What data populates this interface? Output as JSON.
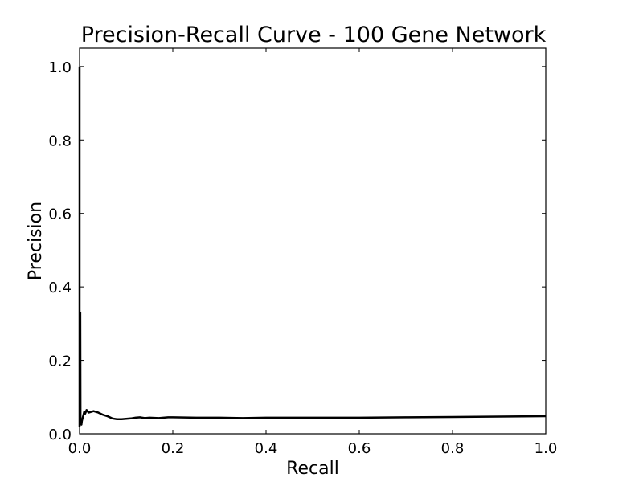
{
  "chart_data": {
    "type": "line",
    "title": "Precision-Recall Curve - 100 Gene Network",
    "xlabel": "Recall",
    "ylabel": "Precision",
    "xlim": [
      0.0,
      1.0
    ],
    "ylim": [
      0.0,
      1.05
    ],
    "grid": false,
    "line_color": "#000000",
    "x_ticks": [
      0.0,
      0.2,
      0.4,
      0.6,
      0.8,
      1.0
    ],
    "x_tick_labels": [
      "0.0",
      "0.2",
      "0.4",
      "0.6",
      "0.8",
      "1.0"
    ],
    "y_ticks": [
      0.0,
      0.2,
      0.4,
      0.6,
      0.8,
      1.0
    ],
    "y_tick_labels": [
      "0.0",
      "0.2",
      "0.4",
      "0.6",
      "0.8",
      "1.0"
    ],
    "series": [
      {
        "x": [
          0.0,
          0.0,
          0.0005,
          0.001,
          0.0015,
          0.002,
          0.003,
          0.004,
          0.005,
          0.006,
          0.008,
          0.01,
          0.012,
          0.015,
          0.018,
          0.02,
          0.025,
          0.03,
          0.035,
          0.04,
          0.045,
          0.05,
          0.055,
          0.06,
          0.065,
          0.07,
          0.08,
          0.09,
          0.1,
          0.11,
          0.12,
          0.13,
          0.14,
          0.15,
          0.17,
          0.19,
          0.2,
          0.25,
          0.3,
          0.35,
          0.4,
          0.45,
          0.5,
          0.6,
          0.7,
          0.8,
          0.9,
          1.0
        ],
        "y": [
          1.0,
          0.02,
          0.08,
          0.2,
          0.33,
          0.04,
          0.03,
          0.025,
          0.035,
          0.04,
          0.05,
          0.06,
          0.055,
          0.065,
          0.06,
          0.058,
          0.06,
          0.062,
          0.06,
          0.058,
          0.055,
          0.052,
          0.05,
          0.048,
          0.045,
          0.042,
          0.04,
          0.04,
          0.041,
          0.042,
          0.044,
          0.045,
          0.043,
          0.044,
          0.043,
          0.045,
          0.045,
          0.044,
          0.044,
          0.043,
          0.044,
          0.044,
          0.044,
          0.044,
          0.045,
          0.046,
          0.047,
          0.048
        ]
      }
    ]
  }
}
